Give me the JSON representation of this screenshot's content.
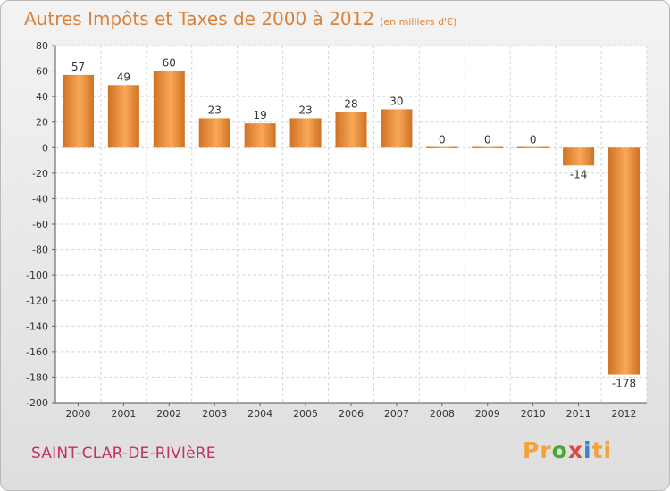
{
  "header": {
    "title": "Autres Impôts et Taxes de 2000 à 2012",
    "unit": "(en milliers d'€)"
  },
  "footer": {
    "commune": "SAINT-CLAR-DE-RIVIèRE",
    "logo_parts": [
      "Pr",
      "o",
      "x",
      "i",
      "ti"
    ],
    "logo_colors": [
      "#f2a43a",
      "#49a832",
      "#e2463f",
      "#3a83c8",
      "#f2a43a"
    ]
  },
  "colors": {
    "bar_light": "#f9a85a",
    "bar_dark": "#cf7222",
    "title": "#d9823c",
    "commune": "#c6305e"
  },
  "chart_data": {
    "type": "bar",
    "title": "Autres Impôts et Taxes de 2000 à 2012",
    "xlabel": "",
    "ylabel": "",
    "categories": [
      "2000",
      "2001",
      "2002",
      "2003",
      "2004",
      "2005",
      "2006",
      "2007",
      "2008",
      "2009",
      "2010",
      "2011",
      "2012"
    ],
    "values": [
      57,
      49,
      60,
      23,
      19,
      23,
      28,
      30,
      0,
      0,
      0,
      -14,
      -178
    ],
    "value_labels": [
      "57",
      "49",
      "60",
      "23",
      "19",
      "23",
      "28",
      "30",
      "0",
      "0",
      "0",
      "-14",
      "-178"
    ],
    "ylim": [
      -200,
      80
    ],
    "yticks": [
      80,
      60,
      40,
      20,
      0,
      -20,
      -40,
      -60,
      -80,
      -100,
      -120,
      -140,
      -160,
      -180,
      -200
    ],
    "ytick_labels": [
      "80",
      "60",
      "40",
      "20",
      "0",
      "-20",
      "-40",
      "-60",
      "-80",
      "-100",
      "-120",
      "-140",
      "-160",
      "-180",
      "-200"
    ],
    "grid": true,
    "legend": "none"
  }
}
